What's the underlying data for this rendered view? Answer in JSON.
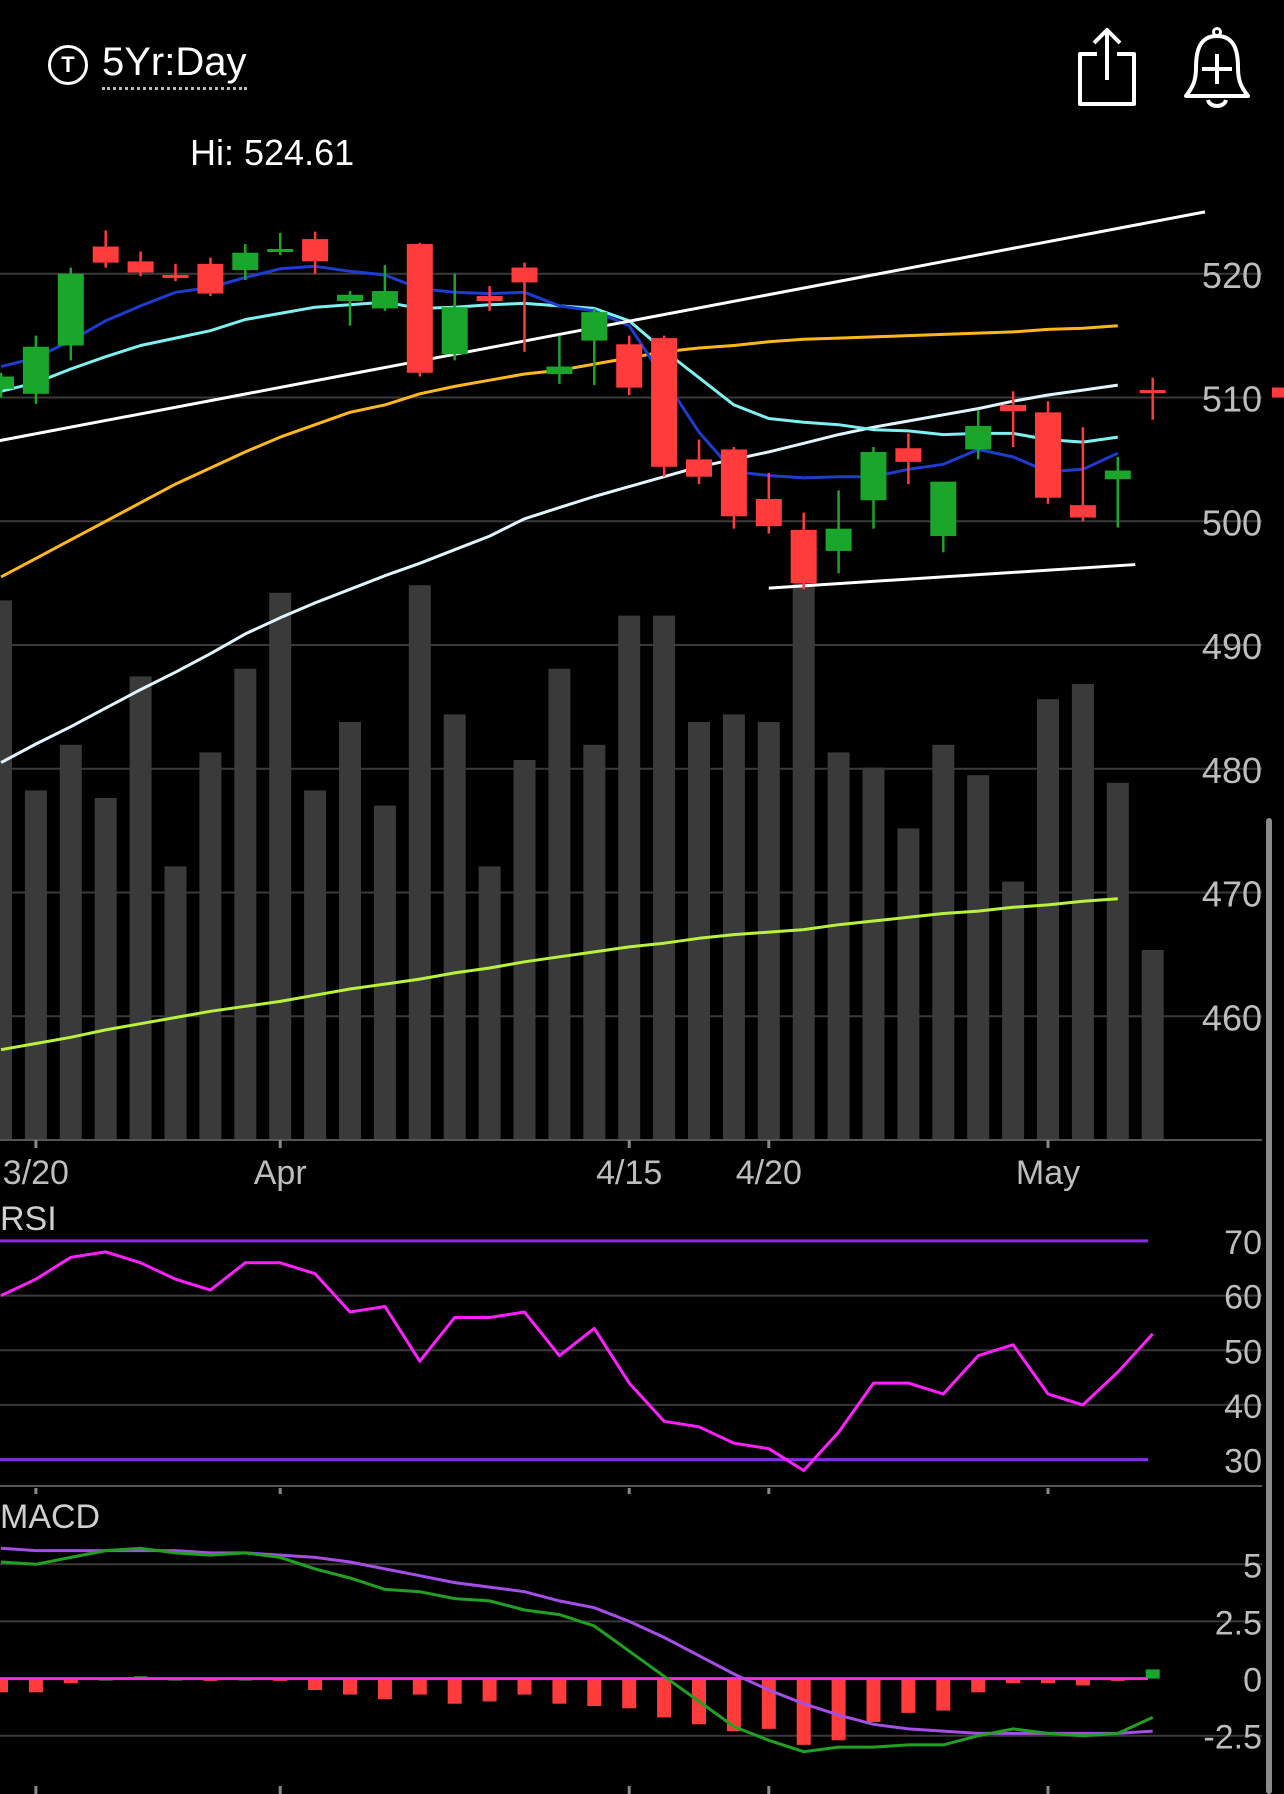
{
  "header": {
    "range_icon": "T",
    "range_label": "5Yr:Day",
    "share_icon": "share-icon",
    "alert_icon": "bell-plus-icon",
    "hi_label": "Hi: 524.61"
  },
  "colors": {
    "up": "#1aa52b",
    "down": "#ff3b3b",
    "ma_blue": "#1e3ccf",
    "ma_cyan": "#7ff0f0",
    "ma_yellow": "#ffb81c",
    "ma_white": "#dff6ff",
    "ma_green": "#b9f23a",
    "trend": "#ffffff",
    "volume": "#3a3a3a",
    "grid": "#3a3a3a",
    "rsi_line": "#ff1fff",
    "rsi_band": "#8a2be2",
    "macd_line": "#22a022",
    "signal_line": "#a44ee6",
    "zero_line": "#ff2ad4"
  },
  "chart_data": [
    {
      "type": "candlestick",
      "ylim": [
        450,
        530
      ],
      "yticks": [
        460,
        470,
        480,
        490,
        500,
        510,
        520
      ],
      "xtick_labels": [
        {
          "label": "3/20",
          "index": 1
        },
        {
          "label": "Apr",
          "index": 8
        },
        {
          "label": "4/15",
          "index": 18
        },
        {
          "label": "4/20",
          "index": 22
        },
        {
          "label": "May",
          "index": 30
        }
      ],
      "candles": [
        {
          "o": 510.7,
          "h": 512.0,
          "l": 510.0,
          "c": 511.7
        },
        {
          "o": 510.3,
          "h": 515.0,
          "l": 509.5,
          "c": 514.1
        },
        {
          "o": 514.2,
          "h": 520.5,
          "l": 513.0,
          "c": 520.0
        },
        {
          "o": 522.2,
          "h": 523.5,
          "l": 520.5,
          "c": 520.9
        },
        {
          "o": 521.0,
          "h": 521.8,
          "l": 519.8,
          "c": 520.1
        },
        {
          "o": 519.9,
          "h": 520.8,
          "l": 519.4,
          "c": 519.7
        },
        {
          "o": 520.8,
          "h": 521.3,
          "l": 518.2,
          "c": 518.4
        },
        {
          "o": 520.3,
          "h": 522.4,
          "l": 519.5,
          "c": 521.7
        },
        {
          "o": 521.9,
          "h": 523.3,
          "l": 521.5,
          "c": 522.0
        },
        {
          "o": 522.8,
          "h": 523.4,
          "l": 520.0,
          "c": 521.0
        },
        {
          "o": 517.8,
          "h": 518.6,
          "l": 515.8,
          "c": 518.3
        },
        {
          "o": 517.2,
          "h": 520.7,
          "l": 517.0,
          "c": 518.6
        },
        {
          "o": 522.4,
          "h": 522.5,
          "l": 511.7,
          "c": 512.0
        },
        {
          "o": 513.5,
          "h": 520.0,
          "l": 513.0,
          "c": 517.3
        },
        {
          "o": 518.2,
          "h": 519.0,
          "l": 517.0,
          "c": 517.8
        },
        {
          "o": 520.5,
          "h": 520.9,
          "l": 513.7,
          "c": 519.3
        },
        {
          "o": 511.9,
          "h": 515.0,
          "l": 511.1,
          "c": 512.5
        },
        {
          "o": 514.6,
          "h": 517.2,
          "l": 511.0,
          "c": 516.9
        },
        {
          "o": 514.3,
          "h": 515.0,
          "l": 510.2,
          "c": 510.8
        },
        {
          "o": 514.8,
          "h": 515.0,
          "l": 503.6,
          "c": 504.4
        },
        {
          "o": 505.0,
          "h": 506.6,
          "l": 503.0,
          "c": 503.6
        },
        {
          "o": 505.8,
          "h": 506.0,
          "l": 499.4,
          "c": 500.4
        },
        {
          "o": 501.8,
          "h": 503.9,
          "l": 499.0,
          "c": 499.6
        },
        {
          "o": 499.3,
          "h": 500.7,
          "l": 494.5,
          "c": 495.0
        },
        {
          "o": 497.6,
          "h": 502.5,
          "l": 495.8,
          "c": 499.4
        },
        {
          "o": 501.7,
          "h": 506.0,
          "l": 499.4,
          "c": 505.6
        },
        {
          "o": 505.9,
          "h": 507.1,
          "l": 503.0,
          "c": 504.8
        },
        {
          "o": 498.8,
          "h": 503.2,
          "l": 497.5,
          "c": 503.2
        },
        {
          "o": 505.8,
          "h": 509.0,
          "l": 505.0,
          "c": 507.7
        },
        {
          "o": 509.4,
          "h": 510.5,
          "l": 506.0,
          "c": 508.9
        },
        {
          "o": 508.8,
          "h": 509.7,
          "l": 501.4,
          "c": 501.9
        },
        {
          "o": 501.3,
          "h": 507.6,
          "l": 500.0,
          "c": 500.3
        },
        {
          "o": 503.4,
          "h": 505.2,
          "l": 499.5,
          "c": 504.1
        },
        {
          "o": 510.6,
          "h": 511.6,
          "l": 508.2,
          "c": 510.4
        }
      ],
      "ma_blue": [
        512.5,
        513.2,
        514.6,
        516.2,
        517.4,
        518.5,
        518.9,
        519.7,
        520.4,
        520.6,
        520.2,
        519.9,
        518.8,
        518.5,
        518.4,
        518.5,
        517.4,
        517.0,
        515.8,
        511.5,
        507.2,
        504.0,
        503.7,
        503.5,
        503.6,
        503.6,
        504.2,
        504.6,
        505.8,
        505.2,
        504.0,
        504.2,
        505.5
      ],
      "ma_cyan": [
        510.5,
        511.2,
        512.3,
        513.3,
        514.2,
        514.8,
        515.4,
        516.3,
        516.8,
        517.3,
        517.5,
        517.7,
        517.2,
        517.3,
        517.5,
        517.6,
        517.4,
        517.2,
        516.2,
        513.8,
        511.6,
        509.4,
        508.3,
        508.0,
        507.8,
        507.4,
        507.3,
        507.0,
        507.1,
        507.1,
        506.6,
        506.4,
        506.8
      ],
      "ma_yellow": [
        495.5,
        497.0,
        498.5,
        500.0,
        501.5,
        503.0,
        504.3,
        505.6,
        506.8,
        507.8,
        508.8,
        509.4,
        510.3,
        510.9,
        511.4,
        511.9,
        512.2,
        512.7,
        513.2,
        513.7,
        514.0,
        514.2,
        514.5,
        514.7,
        514.8,
        514.9,
        515.0,
        515.1,
        515.2,
        515.3,
        515.5,
        515.6,
        515.8
      ],
      "ma_white": [
        480.5,
        482.0,
        483.4,
        484.9,
        486.4,
        487.8,
        489.3,
        490.9,
        492.2,
        493.4,
        494.5,
        495.6,
        496.6,
        497.7,
        498.8,
        500.2,
        501.1,
        502.0,
        502.8,
        503.6,
        504.4,
        505.0,
        505.6,
        506.3,
        507.0,
        507.6,
        508.1,
        508.6,
        509.1,
        509.7,
        510.2,
        510.6,
        511.0
      ],
      "ma_green": [
        457.3,
        457.8,
        458.3,
        458.9,
        459.4,
        459.9,
        460.4,
        460.8,
        461.2,
        461.7,
        462.2,
        462.6,
        463.0,
        463.5,
        463.9,
        464.4,
        464.8,
        465.2,
        465.6,
        465.9,
        466.3,
        466.6,
        466.8,
        467.0,
        467.4,
        467.7,
        468.0,
        468.3,
        468.5,
        468.8,
        469.0,
        469.3,
        469.5
      ],
      "trend_upper": [
        [
          -1,
          506.0
        ],
        [
          34.5,
          525.0
        ]
      ],
      "trend_lower": [
        [
          22,
          494.6
        ],
        [
          32.5,
          496.5
        ]
      ],
      "volume": [
        0.71,
        0.46,
        0.52,
        0.45,
        0.61,
        0.36,
        0.51,
        0.62,
        0.72,
        0.46,
        0.55,
        0.44,
        0.73,
        0.56,
        0.36,
        0.5,
        0.62,
        0.52,
        0.69,
        0.69,
        0.55,
        0.56,
        0.55,
        0.77,
        0.51,
        0.49,
        0.41,
        0.52,
        0.48,
        0.34,
        0.58,
        0.6,
        0.47,
        0.25
      ],
      "last_price_marker": 510.4
    },
    {
      "type": "line",
      "title": "RSI",
      "ylim": [
        27,
        72
      ],
      "yticks": [
        30,
        40,
        50,
        60,
        70
      ],
      "bands": [
        70,
        30
      ],
      "values": [
        60,
        63,
        67,
        68,
        66,
        63,
        61,
        66,
        66,
        64,
        57,
        58,
        48,
        56,
        56,
        57,
        49,
        54,
        44,
        37,
        36,
        33,
        32,
        28,
        35,
        44,
        44,
        42,
        49,
        51,
        42,
        40,
        46,
        53
      ]
    },
    {
      "type": "bar+line",
      "title": "MACD",
      "ylim": [
        -4.0,
        6.5
      ],
      "yticks": [
        5,
        2.5,
        0,
        -2.5
      ],
      "ytick_labels": [
        "5",
        "2.5",
        "0",
        "-2.5"
      ],
      "macd": [
        5.1,
        5.0,
        5.3,
        5.6,
        5.7,
        5.5,
        5.4,
        5.5,
        5.3,
        4.8,
        4.4,
        3.9,
        3.8,
        3.5,
        3.4,
        3.0,
        2.8,
        2.3,
        1.2,
        0.1,
        -1.0,
        -2.1,
        -2.7,
        -3.2,
        -3.0,
        -3.0,
        -2.9,
        -2.9,
        -2.5,
        -2.2,
        -2.4,
        -2.5,
        -2.4,
        -1.7
      ],
      "signal": [
        5.7,
        5.6,
        5.6,
        5.6,
        5.6,
        5.6,
        5.5,
        5.5,
        5.4,
        5.3,
        5.1,
        4.8,
        4.5,
        4.2,
        4.0,
        3.8,
        3.4,
        3.1,
        2.5,
        1.8,
        1.0,
        0.2,
        -0.5,
        -1.1,
        -1.6,
        -2.0,
        -2.2,
        -2.3,
        -2.4,
        -2.4,
        -2.4,
        -2.4,
        -2.4,
        -2.3
      ],
      "histogram": [
        -0.6,
        -0.6,
        -0.2,
        0.0,
        0.1,
        0.0,
        -0.1,
        0.0,
        -0.1,
        -0.5,
        -0.7,
        -0.9,
        -0.7,
        -1.1,
        -1.0,
        -0.7,
        -1.1,
        -1.2,
        -1.3,
        -1.7,
        -2.0,
        -2.3,
        -2.2,
        -2.9,
        -2.7,
        -1.9,
        -1.5,
        -1.4,
        -0.6,
        -0.2,
        -0.2,
        -0.3,
        -0.1,
        0.4
      ]
    }
  ]
}
